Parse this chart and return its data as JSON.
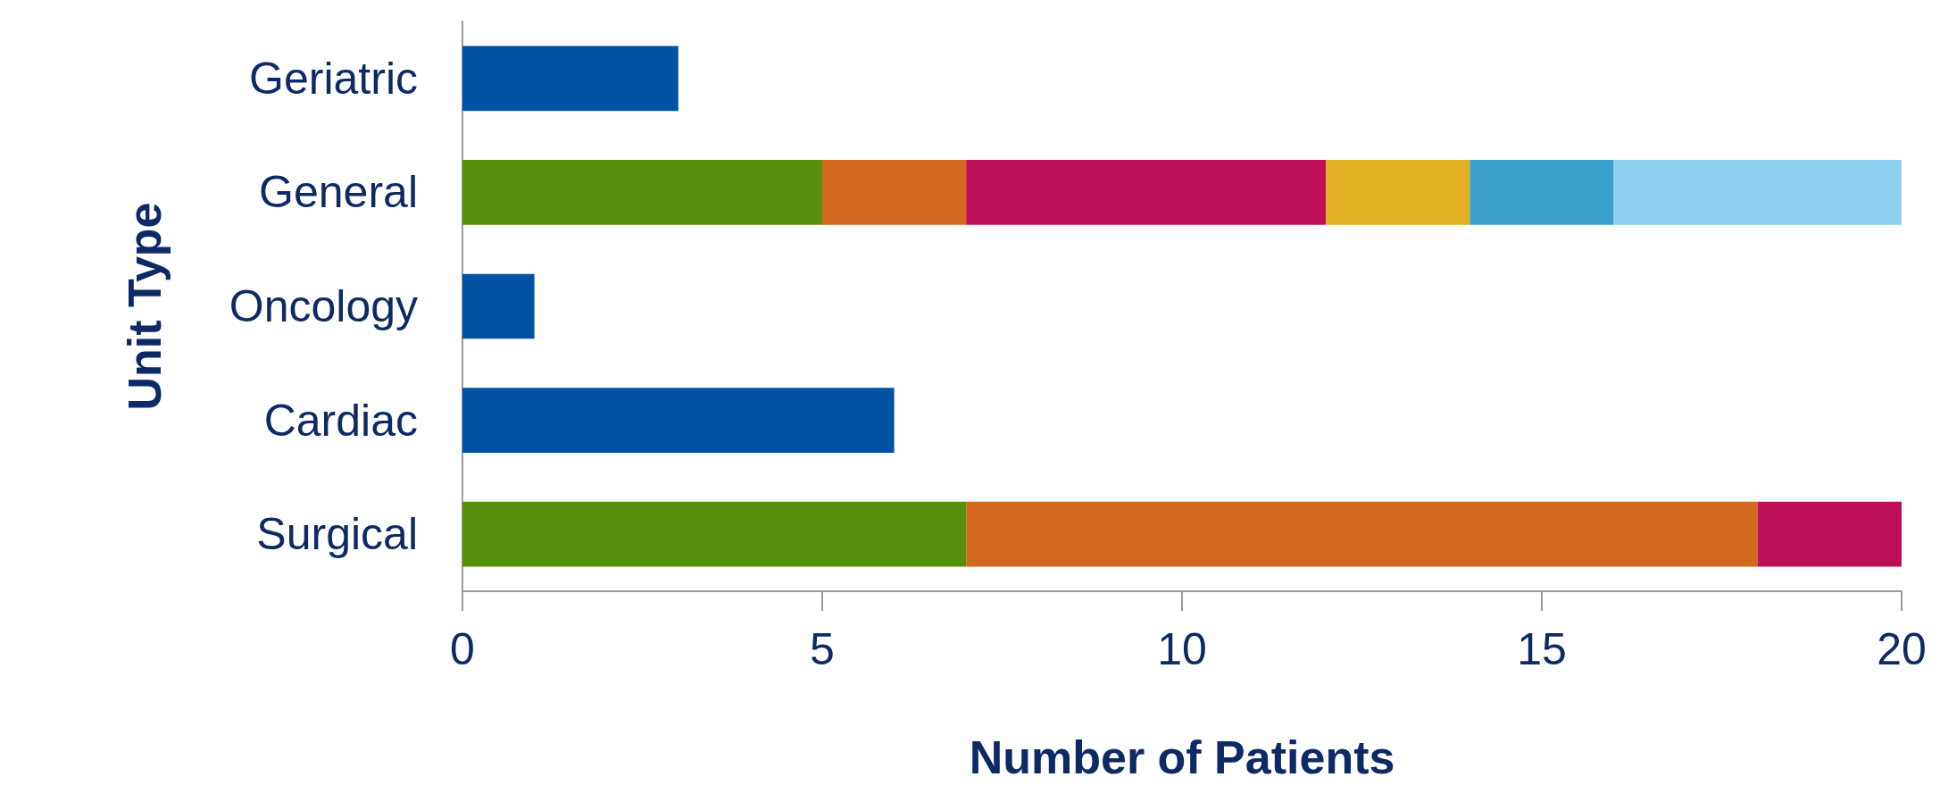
{
  "chart_data": {
    "type": "bar",
    "orientation": "horizontal",
    "stacked": true,
    "xlabel": "Number of Patients",
    "ylabel": "Unit Type",
    "categories": [
      "Geriatric",
      "General",
      "Oncology",
      "Cardiac",
      "Surgical"
    ],
    "series": [
      {
        "color": "#0052a5",
        "values": [
          3,
          null,
          1,
          6,
          null
        ]
      },
      {
        "color": "#55910b",
        "values": [
          null,
          5,
          null,
          null,
          7
        ]
      },
      {
        "color": "#d2691e",
        "values": [
          null,
          2,
          null,
          null,
          11
        ]
      },
      {
        "color": "#bc0f58",
        "values": [
          null,
          5,
          null,
          null,
          2
        ]
      },
      {
        "color": "#e2b022",
        "values": [
          null,
          2,
          null,
          null,
          null
        ]
      },
      {
        "color": "#3a9fcb",
        "values": [
          null,
          2,
          null,
          null,
          null
        ]
      },
      {
        "color": "#8dd1ee",
        "values": [
          null,
          4,
          null,
          null,
          null
        ]
      }
    ],
    "xlim": [
      0,
      20
    ],
    "xticks": [
      0,
      5,
      10,
      15,
      20
    ],
    "grid": false
  }
}
